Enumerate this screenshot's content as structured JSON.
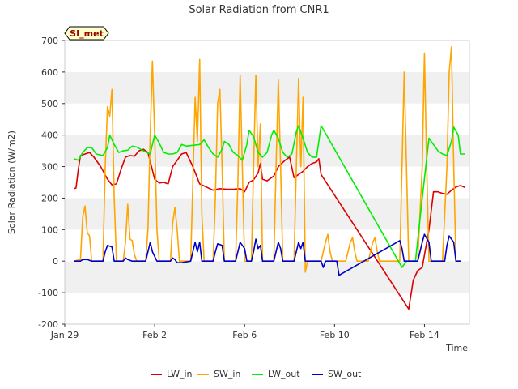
{
  "chart_data": {
    "type": "line",
    "title": "Solar Radiation from CNR1",
    "xlabel": "Time",
    "ylabel": "Solar Radiation (W/m2)",
    "badge": "SI_met",
    "x_unit": "days since Jan 29",
    "xlim": [
      0,
      18
    ],
    "ylim": [
      -200,
      700
    ],
    "yticks": [
      -200,
      -100,
      0,
      100,
      200,
      300,
      400,
      500,
      600,
      700
    ],
    "xticks": [
      {
        "v": 0,
        "label": "Jan 29"
      },
      {
        "v": 4,
        "label": "Feb 2"
      },
      {
        "v": 8,
        "label": "Feb 6"
      },
      {
        "v": 12,
        "label": "Feb 10"
      },
      {
        "v": 16,
        "label": "Feb 14"
      }
    ],
    "grid": "horizontal bands",
    "legend_position": "bottom",
    "series": [
      {
        "name": "LW_in",
        "color": "#dd0000",
        "points": [
          [
            0.4,
            230
          ],
          [
            0.5,
            232
          ],
          [
            0.6,
            290
          ],
          [
            0.7,
            335
          ],
          [
            0.9,
            340
          ],
          [
            1.1,
            345
          ],
          [
            1.3,
            330
          ],
          [
            1.6,
            300
          ],
          [
            1.9,
            260
          ],
          [
            2.1,
            242
          ],
          [
            2.3,
            245
          ],
          [
            2.5,
            290
          ],
          [
            2.7,
            330
          ],
          [
            2.9,
            335
          ],
          [
            3.1,
            333
          ],
          [
            3.3,
            350
          ],
          [
            3.5,
            355
          ],
          [
            3.7,
            345
          ],
          [
            4.0,
            260
          ],
          [
            4.2,
            248
          ],
          [
            4.4,
            250
          ],
          [
            4.6,
            245
          ],
          [
            4.8,
            300
          ],
          [
            5.0,
            320
          ],
          [
            5.2,
            340
          ],
          [
            5.4,
            345
          ],
          [
            5.7,
            300
          ],
          [
            6.0,
            245
          ],
          [
            6.3,
            235
          ],
          [
            6.6,
            225
          ],
          [
            6.9,
            230
          ],
          [
            7.2,
            228
          ],
          [
            7.5,
            228
          ],
          [
            7.8,
            230
          ],
          [
            8.0,
            220
          ],
          [
            8.2,
            250
          ],
          [
            8.4,
            258
          ],
          [
            8.6,
            280
          ],
          [
            8.7,
            310
          ],
          [
            8.8,
            260
          ],
          [
            9.0,
            255
          ],
          [
            9.3,
            270
          ],
          [
            9.5,
            300
          ],
          [
            9.8,
            320
          ],
          [
            10.0,
            330
          ],
          [
            10.2,
            265
          ],
          [
            10.4,
            275
          ],
          [
            10.6,
            285
          ],
          [
            10.8,
            300
          ],
          [
            11.0,
            310
          ],
          [
            11.2,
            315
          ],
          [
            11.3,
            325
          ],
          [
            11.4,
            275
          ],
          [
            15.3,
            -152
          ],
          [
            15.5,
            -60
          ],
          [
            15.7,
            -30
          ],
          [
            15.9,
            -20
          ],
          [
            16.2,
            100
          ],
          [
            16.4,
            220
          ],
          [
            16.6,
            220
          ],
          [
            16.8,
            215
          ],
          [
            17.0,
            212
          ],
          [
            17.2,
            225
          ],
          [
            17.4,
            235
          ],
          [
            17.6,
            240
          ],
          [
            17.8,
            234
          ]
        ]
      },
      {
        "name": "SW_in",
        "color": "#ffa500",
        "points": [
          [
            0.4,
            0
          ],
          [
            0.7,
            5
          ],
          [
            0.8,
            140
          ],
          [
            0.9,
            175
          ],
          [
            1.0,
            90
          ],
          [
            1.1,
            80
          ],
          [
            1.2,
            0
          ],
          [
            1.7,
            0
          ],
          [
            1.8,
            300
          ],
          [
            1.9,
            490
          ],
          [
            2.0,
            460
          ],
          [
            2.1,
            545
          ],
          [
            2.2,
            200
          ],
          [
            2.3,
            0
          ],
          [
            2.6,
            0
          ],
          [
            2.7,
            60
          ],
          [
            2.8,
            180
          ],
          [
            2.9,
            70
          ],
          [
            3.0,
            65
          ],
          [
            3.1,
            20
          ],
          [
            3.2,
            0
          ],
          [
            3.6,
            0
          ],
          [
            3.7,
            100
          ],
          [
            3.8,
            400
          ],
          [
            3.9,
            635
          ],
          [
            4.0,
            400
          ],
          [
            4.1,
            100
          ],
          [
            4.2,
            0
          ],
          [
            4.7,
            0
          ],
          [
            4.8,
            120
          ],
          [
            4.9,
            170
          ],
          [
            5.0,
            100
          ],
          [
            5.1,
            0
          ],
          [
            5.6,
            0
          ],
          [
            5.7,
            250
          ],
          [
            5.8,
            520
          ],
          [
            5.9,
            380
          ],
          [
            6.0,
            640
          ],
          [
            6.1,
            150
          ],
          [
            6.2,
            0
          ],
          [
            6.6,
            0
          ],
          [
            6.7,
            200
          ],
          [
            6.8,
            500
          ],
          [
            6.9,
            545
          ],
          [
            7.0,
            300
          ],
          [
            7.1,
            0
          ],
          [
            7.6,
            0
          ],
          [
            7.7,
            250
          ],
          [
            7.8,
            590
          ],
          [
            7.9,
            300
          ],
          [
            8.0,
            0
          ],
          [
            8.3,
            0
          ],
          [
            8.4,
            300
          ],
          [
            8.5,
            590
          ],
          [
            8.6,
            300
          ],
          [
            8.7,
            435
          ],
          [
            8.8,
            0
          ],
          [
            9.3,
            0
          ],
          [
            9.4,
            300
          ],
          [
            9.5,
            575
          ],
          [
            9.6,
            300
          ],
          [
            9.7,
            0
          ],
          [
            10.2,
            0
          ],
          [
            10.3,
            300
          ],
          [
            10.4,
            580
          ],
          [
            10.5,
            300
          ],
          [
            10.6,
            520
          ],
          [
            10.7,
            -35
          ],
          [
            10.8,
            0
          ],
          [
            11.4,
            0
          ],
          [
            11.6,
            60
          ],
          [
            11.7,
            85
          ],
          [
            11.8,
            30
          ],
          [
            11.9,
            0
          ],
          [
            12.5,
            0
          ],
          [
            12.7,
            60
          ],
          [
            12.8,
            75
          ],
          [
            12.9,
            30
          ],
          [
            13.0,
            0
          ],
          [
            13.5,
            0
          ],
          [
            13.7,
            60
          ],
          [
            13.8,
            75
          ],
          [
            13.9,
            30
          ],
          [
            14.0,
            0
          ],
          [
            14.6,
            0
          ],
          [
            14.9,
            0
          ],
          [
            15.0,
            300
          ],
          [
            15.1,
            600
          ],
          [
            15.2,
            300
          ],
          [
            15.3,
            0
          ],
          [
            15.7,
            0
          ],
          [
            15.9,
            300
          ],
          [
            16.0,
            660
          ],
          [
            16.1,
            300
          ],
          [
            16.2,
            0
          ],
          [
            16.8,
            0
          ],
          [
            17.0,
            300
          ],
          [
            17.1,
            600
          ],
          [
            17.2,
            680
          ],
          [
            17.3,
            300
          ],
          [
            17.4,
            0
          ],
          [
            17.6,
            0
          ]
        ]
      },
      {
        "name": "LW_out",
        "color": "#00ee00",
        "points": [
          [
            0.4,
            325
          ],
          [
            0.6,
            320
          ],
          [
            0.8,
            345
          ],
          [
            1.0,
            360
          ],
          [
            1.2,
            360
          ],
          [
            1.4,
            340
          ],
          [
            1.7,
            335
          ],
          [
            1.9,
            360
          ],
          [
            2.0,
            400
          ],
          [
            2.2,
            370
          ],
          [
            2.4,
            345
          ],
          [
            2.6,
            350
          ],
          [
            2.8,
            352
          ],
          [
            3.0,
            365
          ],
          [
            3.2,
            362
          ],
          [
            3.5,
            350
          ],
          [
            3.8,
            340
          ],
          [
            3.9,
            370
          ],
          [
            4.0,
            400
          ],
          [
            4.2,
            375
          ],
          [
            4.4,
            345
          ],
          [
            4.6,
            340
          ],
          [
            4.8,
            340
          ],
          [
            5.0,
            345
          ],
          [
            5.2,
            370
          ],
          [
            5.4,
            365
          ],
          [
            6.0,
            370
          ],
          [
            6.2,
            385
          ],
          [
            6.4,
            360
          ],
          [
            6.6,
            340
          ],
          [
            6.8,
            330
          ],
          [
            7.0,
            355
          ],
          [
            7.1,
            380
          ],
          [
            7.3,
            370
          ],
          [
            7.5,
            345
          ],
          [
            7.7,
            335
          ],
          [
            7.9,
            320
          ],
          [
            8.1,
            370
          ],
          [
            8.2,
            415
          ],
          [
            8.4,
            395
          ],
          [
            8.6,
            345
          ],
          [
            8.8,
            330
          ],
          [
            9.0,
            345
          ],
          [
            9.2,
            400
          ],
          [
            9.3,
            415
          ],
          [
            9.5,
            390
          ],
          [
            9.7,
            345
          ],
          [
            9.9,
            330
          ],
          [
            10.1,
            340
          ],
          [
            10.3,
            410
          ],
          [
            10.4,
            430
          ],
          [
            10.6,
            390
          ],
          [
            10.8,
            345
          ],
          [
            11.0,
            330
          ],
          [
            11.2,
            330
          ],
          [
            11.4,
            430
          ],
          [
            15.0,
            -20
          ],
          [
            15.2,
            0
          ],
          [
            15.6,
            0
          ],
          [
            15.9,
            200
          ],
          [
            16.2,
            390
          ],
          [
            16.4,
            370
          ],
          [
            16.6,
            350
          ],
          [
            16.8,
            340
          ],
          [
            17.0,
            335
          ],
          [
            17.2,
            380
          ],
          [
            17.3,
            425
          ],
          [
            17.5,
            400
          ],
          [
            17.6,
            340
          ],
          [
            17.8,
            340
          ]
        ]
      },
      {
        "name": "SW_out",
        "color": "#0000cc",
        "points": [
          [
            0.4,
            0
          ],
          [
            0.7,
            0
          ],
          [
            0.8,
            5
          ],
          [
            1.0,
            5
          ],
          [
            1.2,
            0
          ],
          [
            1.7,
            0
          ],
          [
            1.8,
            30
          ],
          [
            1.9,
            50
          ],
          [
            2.1,
            45
          ],
          [
            2.2,
            0
          ],
          [
            2.6,
            0
          ],
          [
            2.7,
            10
          ],
          [
            2.8,
            5
          ],
          [
            3.0,
            0
          ],
          [
            3.6,
            0
          ],
          [
            3.7,
            30
          ],
          [
            3.8,
            60
          ],
          [
            3.9,
            30
          ],
          [
            4.1,
            0
          ],
          [
            4.7,
            0
          ],
          [
            4.8,
            10
          ],
          [
            4.9,
            5
          ],
          [
            5.0,
            -5
          ],
          [
            5.2,
            -5
          ],
          [
            5.6,
            0
          ],
          [
            5.7,
            30
          ],
          [
            5.8,
            60
          ],
          [
            5.9,
            30
          ],
          [
            6.0,
            60
          ],
          [
            6.1,
            0
          ],
          [
            6.6,
            0
          ],
          [
            6.7,
            30
          ],
          [
            6.8,
            55
          ],
          [
            7.0,
            50
          ],
          [
            7.1,
            0
          ],
          [
            7.6,
            0
          ],
          [
            7.7,
            30
          ],
          [
            7.8,
            60
          ],
          [
            8.0,
            40
          ],
          [
            8.1,
            0
          ],
          [
            8.3,
            0
          ],
          [
            8.4,
            30
          ],
          [
            8.5,
            70
          ],
          [
            8.6,
            40
          ],
          [
            8.7,
            50
          ],
          [
            8.8,
            0
          ],
          [
            9.3,
            0
          ],
          [
            9.4,
            30
          ],
          [
            9.5,
            60
          ],
          [
            9.6,
            40
          ],
          [
            9.7,
            0
          ],
          [
            10.2,
            0
          ],
          [
            10.3,
            30
          ],
          [
            10.4,
            60
          ],
          [
            10.5,
            40
          ],
          [
            10.6,
            60
          ],
          [
            10.7,
            0
          ],
          [
            11.0,
            0
          ],
          [
            11.4,
            0
          ],
          [
            11.5,
            -20
          ],
          [
            11.6,
            0
          ],
          [
            12.1,
            0
          ],
          [
            12.2,
            -45
          ],
          [
            14.9,
            65
          ],
          [
            15.0,
            40
          ],
          [
            15.1,
            0
          ],
          [
            15.3,
            0
          ],
          [
            15.7,
            0
          ],
          [
            15.9,
            60
          ],
          [
            16.0,
            85
          ],
          [
            16.2,
            60
          ],
          [
            16.3,
            0
          ],
          [
            16.9,
            0
          ],
          [
            17.0,
            50
          ],
          [
            17.1,
            80
          ],
          [
            17.3,
            60
          ],
          [
            17.4,
            0
          ],
          [
            17.6,
            0
          ]
        ]
      }
    ]
  }
}
